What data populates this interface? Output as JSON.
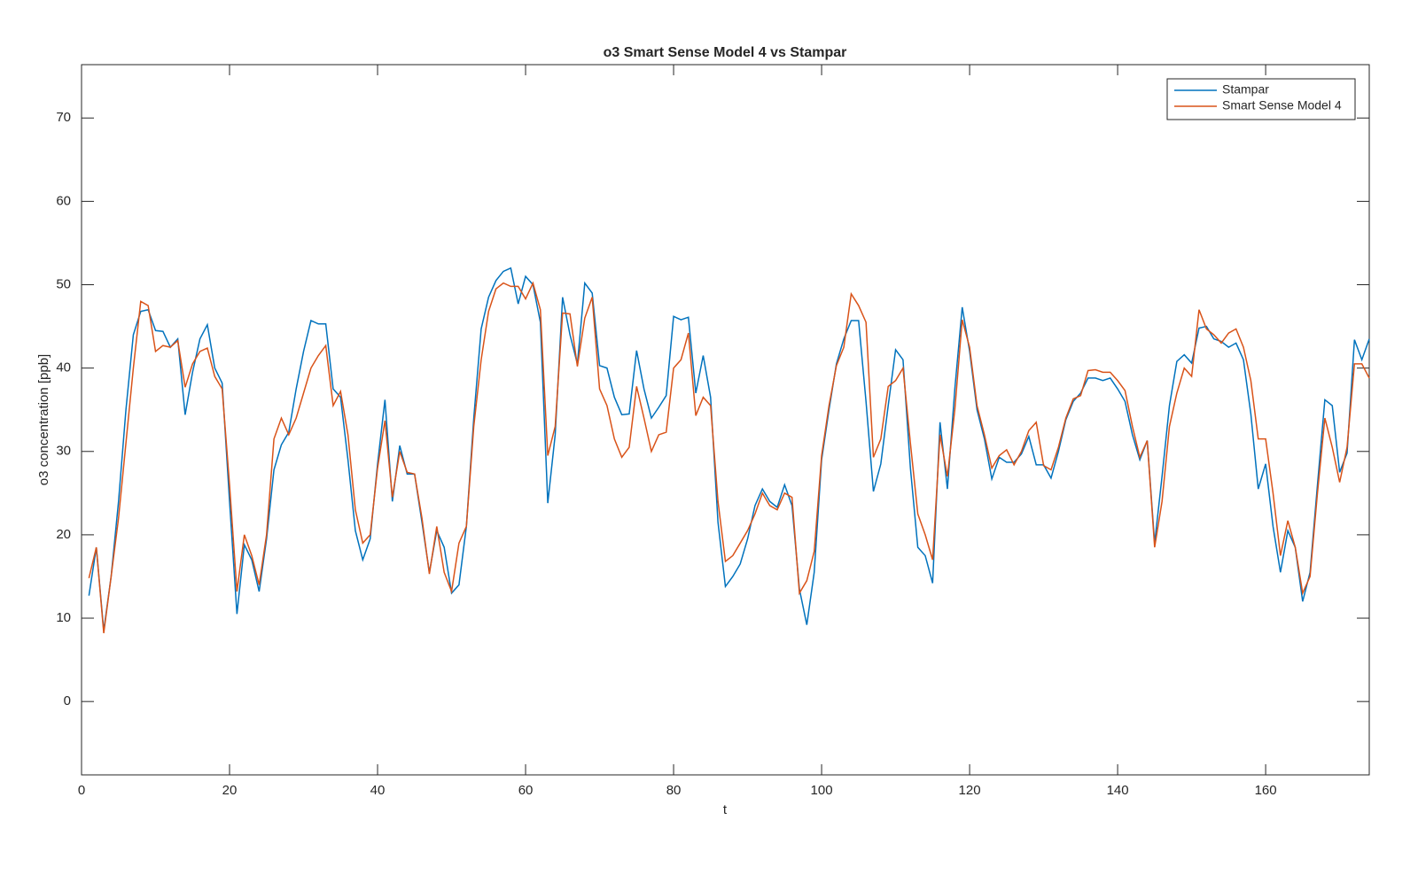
{
  "chart_data": {
    "type": "line",
    "title": "o3 Smart Sense Model 4 vs Stampar",
    "x_label": "t",
    "y_label": "o3 concentration [ppb]",
    "x": [
      1,
      2,
      3,
      4,
      5,
      6,
      7,
      8,
      9,
      10,
      11,
      12,
      13,
      14,
      15,
      16,
      17,
      18,
      19,
      20,
      21,
      22,
      23,
      24,
      25,
      26,
      27,
      28,
      29,
      30,
      31,
      32,
      33,
      34,
      35,
      36,
      37,
      38,
      39,
      40,
      41,
      42,
      43,
      44,
      45,
      46,
      47,
      48,
      49,
      50,
      51,
      52,
      53,
      54,
      55,
      56,
      57,
      58,
      59,
      60,
      61,
      62,
      63,
      64,
      65,
      66,
      67,
      68,
      69,
      70,
      71,
      72,
      73,
      74,
      75,
      76,
      77,
      78,
      79,
      80,
      81,
      82,
      83,
      84,
      85,
      86,
      87,
      88,
      89,
      90,
      91,
      92,
      93,
      94,
      95,
      96,
      97,
      98,
      99,
      100,
      101,
      102,
      103,
      104,
      105,
      106,
      107,
      108,
      109,
      110,
      111,
      112,
      113,
      114,
      115,
      116,
      117,
      118,
      119,
      120,
      121,
      122,
      123,
      124,
      125,
      126,
      127,
      128,
      129,
      130,
      131,
      132,
      133,
      134,
      135,
      136,
      137,
      138,
      139,
      140,
      141,
      142,
      143,
      144,
      145,
      146,
      147,
      148,
      149,
      150,
      151,
      152,
      153,
      154,
      155,
      156,
      157,
      158,
      159,
      160,
      161,
      162,
      163,
      164,
      165,
      166,
      167,
      168,
      169,
      170,
      171,
      172,
      173,
      174
    ],
    "series": [
      {
        "name": "Stampar",
        "color": "#0072bd",
        "values": [
          12.7,
          18.5,
          8.5,
          15,
          24,
          35,
          44,
          46.8,
          47,
          44.5,
          44.4,
          42.5,
          43.5,
          34.4,
          39.5,
          43.5,
          45.2,
          40,
          38.2,
          24,
          10.5,
          18.8,
          17,
          13.2,
          19.5,
          27.8,
          30.8,
          32.3,
          37.5,
          42,
          45.7,
          45.3,
          45.3,
          37.5,
          36.5,
          29,
          20.5,
          17,
          19.5,
          28.5,
          36.2,
          24,
          30.7,
          27.3,
          27.3,
          21.5,
          15.5,
          20.5,
          18.5,
          13,
          14,
          21,
          34,
          44.7,
          48.5,
          50.5,
          51.6,
          52,
          47.7,
          51,
          50,
          45.5,
          23.8,
          32,
          48.5,
          44,
          40.5,
          50.2,
          49,
          40.3,
          40,
          36.5,
          34.4,
          34.5,
          42.1,
          37.5,
          34,
          35.3,
          36.7,
          46.2,
          45.8,
          46.1,
          37,
          41.5,
          36.5,
          21.5,
          13.8,
          15,
          16.5,
          19.5,
          23.5,
          25.5,
          24,
          23.3,
          26,
          23.5,
          13.5,
          9.2,
          15.5,
          29,
          35,
          40.5,
          43.5,
          45.7,
          45.7,
          36,
          25.2,
          28.5,
          35.5,
          42.2,
          41,
          28,
          18.5,
          17.5,
          14.2,
          33.5,
          25.5,
          37.5,
          47.3,
          42,
          35,
          31.5,
          26.7,
          29.3,
          28.7,
          28.7,
          29.7,
          31.8,
          28.4,
          28.4,
          26.8,
          30,
          33.8,
          36,
          37,
          38.8,
          38.8,
          38.5,
          38.8,
          37.5,
          36,
          32,
          29,
          31.3,
          19,
          27,
          35.5,
          40.8,
          41.6,
          40.6,
          44.8,
          45,
          43.5,
          43.2,
          42.5,
          43,
          41,
          34.5,
          25.5,
          28.5,
          21,
          15.5,
          20.5,
          18.5,
          12,
          15.5,
          26,
          36.2,
          35.5,
          27.5,
          29.8,
          43.4,
          41,
          43.5
        ]
      },
      {
        "name": "Smart Sense Model 4",
        "color": "#d95319",
        "values": [
          14.8,
          18.5,
          8.2,
          15,
          22,
          31,
          40,
          48,
          47.5,
          42,
          42.7,
          42.5,
          43.3,
          37.7,
          40.5,
          42,
          42.4,
          39,
          37.5,
          26,
          13.2,
          20,
          17.5,
          14,
          20,
          31.5,
          34,
          32,
          34,
          37,
          40,
          41.5,
          42.7,
          35.5,
          37.2,
          32,
          23,
          19,
          20,
          28,
          33.7,
          24.5,
          30,
          27.5,
          27.3,
          22,
          15.3,
          21,
          15.5,
          13.2,
          19,
          21,
          33,
          41,
          46.8,
          49.5,
          50.2,
          49.8,
          49.8,
          48.3,
          50.2,
          47,
          29.5,
          33,
          46.6,
          46.5,
          40.2,
          46,
          48.5,
          37.5,
          35.5,
          31.5,
          29.3,
          30.5,
          37.8,
          34,
          30,
          32,
          32.3,
          40,
          41,
          44.2,
          34.3,
          36.5,
          35.5,
          24,
          16.8,
          17.5,
          19,
          20.5,
          22.5,
          25,
          23.5,
          23,
          25,
          24.5,
          13,
          14.5,
          18,
          29.5,
          35.5,
          40.3,
          42.5,
          48.9,
          47.5,
          45.5,
          29.3,
          31.5,
          37.8,
          38.5,
          40,
          31,
          22.5,
          20,
          17,
          32,
          27,
          35,
          45.8,
          42.5,
          35.5,
          32,
          28,
          29.5,
          30.2,
          28.4,
          30,
          32.5,
          33.5,
          28.3,
          27.8,
          30.5,
          34,
          36.3,
          36.7,
          39.7,
          39.8,
          39.5,
          39.5,
          38.5,
          37.3,
          33,
          29.3,
          31.3,
          18.5,
          24,
          33,
          37,
          40,
          39,
          47,
          44.7,
          44,
          43,
          44.2,
          44.7,
          42.5,
          38.5,
          31.5,
          31.5,
          25,
          17.5,
          21.7,
          18.5,
          13,
          15,
          25,
          34,
          30.5,
          26.3,
          30.5,
          40.5,
          40.5,
          38.8
        ]
      }
    ],
    "xlim": [
      0,
      174
    ],
    "ylim": [
      -8.8,
      76.4
    ],
    "xticks": [
      0,
      20,
      40,
      60,
      80,
      100,
      120,
      140,
      160
    ],
    "yticks": [
      0,
      10,
      20,
      30,
      40,
      50,
      60,
      70
    ],
    "legend": "northeast"
  }
}
